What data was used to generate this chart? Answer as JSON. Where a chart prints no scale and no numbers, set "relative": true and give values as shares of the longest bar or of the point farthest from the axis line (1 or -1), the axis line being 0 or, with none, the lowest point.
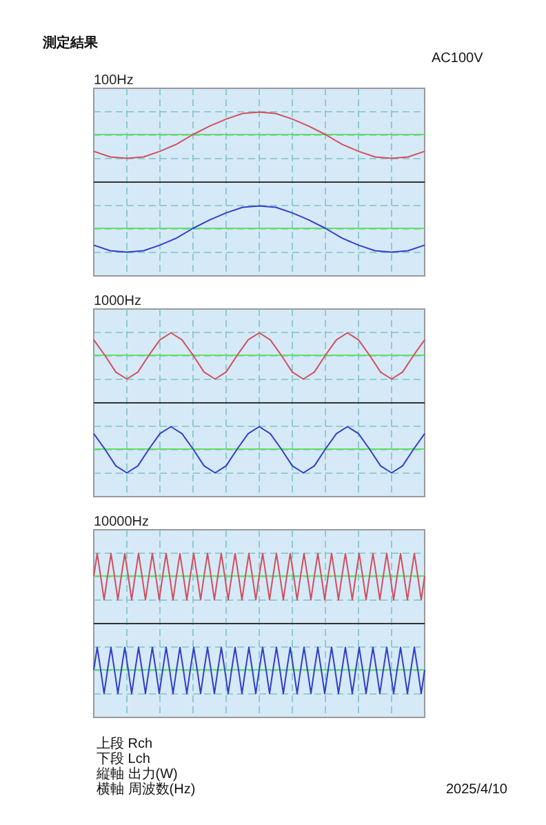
{
  "chart_data": [
    {
      "type": "line",
      "title": "100Hz",
      "relative": true,
      "grid": true,
      "annotations": [
        "測定結果",
        "AC100V"
      ],
      "categories": [
        null,
        null,
        null,
        null,
        null,
        null,
        null,
        null,
        null,
        null,
        null,
        null,
        null,
        null,
        null,
        null,
        null,
        null,
        null,
        null,
        null
      ],
      "ref_lines": [
        {
          "axis": "y",
          "value": 0.84,
          "color": "#66dd66"
        },
        {
          "axis": "y",
          "value": 0.5,
          "color": "#333333"
        },
        {
          "axis": "y",
          "value": 0.17,
          "color": "#66dd66"
        }
      ],
      "series": [
        {
          "color": "#d0505e",
          "values": [
            0.72,
            0.68,
            0.67,
            0.68,
            0.72,
            0.77,
            0.84,
            0.9,
            0.95,
            0.99,
            1.0,
            0.99,
            0.95,
            0.9,
            0.84,
            0.77,
            0.72,
            0.68,
            0.67,
            0.68,
            0.72
          ]
        },
        {
          "color": "#3040c8",
          "values": [
            0.05,
            0.01,
            0,
            0.01,
            0.05,
            0.1,
            0.17,
            0.23,
            0.28,
            0.32,
            0.33,
            0.32,
            0.28,
            0.23,
            0.17,
            0.1,
            0.05,
            0.01,
            0,
            0.01,
            0.05
          ]
        }
      ]
    },
    {
      "type": "line",
      "title": "1000Hz",
      "relative": true,
      "grid": true,
      "categories": [
        null,
        null,
        null,
        null,
        null,
        null,
        null,
        null,
        null,
        null,
        null,
        null,
        null,
        null,
        null,
        null,
        null,
        null,
        null,
        null,
        null,
        null,
        null,
        null,
        null,
        null,
        null,
        null,
        null,
        null,
        null
      ],
      "ref_lines": [
        {
          "axis": "y",
          "value": 0.84,
          "color": "#66dd66"
        },
        {
          "axis": "y",
          "value": 0.5,
          "color": "#333333"
        },
        {
          "axis": "y",
          "value": 0.17,
          "color": "#66dd66"
        }
      ],
      "series": [
        {
          "color": "#d0505e",
          "values": [
            0.95,
            0.84,
            0.72,
            0.67,
            0.72,
            0.84,
            0.95,
            1.0,
            0.95,
            0.84,
            0.72,
            0.67,
            0.72,
            0.84,
            0.95,
            1.0,
            0.95,
            0.84,
            0.72,
            0.67,
            0.72,
            0.84,
            0.95,
            1.0,
            0.95,
            0.84,
            0.72,
            0.67,
            0.72,
            0.84,
            0.95
          ]
        },
        {
          "color": "#3040c8",
          "values": [
            0.28,
            0.17,
            0.05,
            0,
            0.05,
            0.17,
            0.28,
            0.33,
            0.28,
            0.17,
            0.05,
            0,
            0.05,
            0.17,
            0.28,
            0.33,
            0.28,
            0.17,
            0.05,
            0,
            0.05,
            0.17,
            0.28,
            0.33,
            0.28,
            0.17,
            0.05,
            0,
            0.05,
            0.17,
            0.28
          ]
        }
      ]
    },
    {
      "type": "line",
      "title": "10000Hz",
      "relative": true,
      "grid": true,
      "annotations": [
        "上段 Rch",
        "下段 Lch",
        "縦軸 出力(W)",
        "横軸 周波数(Hz)",
        "2025/4/10"
      ],
      "categories": [
        null,
        null,
        null,
        null,
        null,
        null,
        null,
        null,
        null,
        null,
        null,
        null,
        null,
        null,
        null,
        null,
        null,
        null,
        null,
        null,
        null,
        null,
        null,
        null,
        null,
        null,
        null,
        null,
        null,
        null,
        null,
        null,
        null,
        null,
        null,
        null,
        null,
        null,
        null,
        null,
        null,
        null,
        null,
        null,
        null,
        null,
        null,
        null,
        null,
        null,
        null,
        null,
        null,
        null,
        null,
        null,
        null,
        null,
        null,
        null,
        null,
        null,
        null,
        null,
        null,
        null,
        null,
        null,
        null,
        null,
        null,
        null,
        null,
        null,
        null,
        null,
        null,
        null,
        null,
        null,
        null,
        null,
        null,
        null,
        null,
        null,
        null,
        null,
        null,
        null,
        null,
        null,
        null,
        null,
        null,
        null,
        null
      ],
      "ref_lines": [
        {
          "axis": "y",
          "value": 0.84,
          "color": "#66dd66"
        },
        {
          "axis": "y",
          "value": 0.5,
          "color": "#333333"
        },
        {
          "axis": "y",
          "value": 0.17,
          "color": "#66dd66"
        }
      ],
      "series": [
        {
          "color": "#d0505e",
          "values": [
            0.84,
            1,
            0.84,
            0.67,
            0.84,
            1,
            0.84,
            0.67,
            0.84,
            1,
            0.84,
            0.67,
            0.84,
            1,
            0.84,
            0.67,
            0.84,
            1,
            0.84,
            0.67,
            0.84,
            1,
            0.84,
            0.67,
            0.84,
            1,
            0.84,
            0.67,
            0.84,
            1,
            0.84,
            0.67,
            0.84,
            1,
            0.84,
            0.67,
            0.84,
            1,
            0.84,
            0.67,
            0.84,
            1,
            0.84,
            0.67,
            0.84,
            1,
            0.84,
            0.67,
            0.84,
            1,
            0.84,
            0.67,
            0.84,
            1,
            0.84,
            0.67,
            0.84,
            1,
            0.84,
            0.67,
            0.84,
            1,
            0.84,
            0.67,
            0.84,
            1,
            0.84,
            0.67,
            0.84,
            1,
            0.84,
            0.67,
            0.84,
            1,
            0.84,
            0.67,
            0.84,
            1,
            0.84,
            0.67,
            0.84,
            1,
            0.84,
            0.67,
            0.84,
            1,
            0.84,
            0.67,
            0.84,
            1,
            0.84,
            0.67,
            0.84,
            1,
            0.84,
            0.67,
            0.84
          ]
        },
        {
          "color": "#3040c8",
          "values": [
            0.17,
            0.33,
            0.17,
            0,
            0.17,
            0.33,
            0.17,
            0,
            0.17,
            0.33,
            0.17,
            0,
            0.17,
            0.33,
            0.17,
            0,
            0.17,
            0.33,
            0.17,
            0,
            0.17,
            0.33,
            0.17,
            0,
            0.17,
            0.33,
            0.17,
            0,
            0.17,
            0.33,
            0.17,
            0,
            0.17,
            0.33,
            0.17,
            0,
            0.17,
            0.33,
            0.17,
            0,
            0.17,
            0.33,
            0.17,
            0,
            0.17,
            0.33,
            0.17,
            0,
            0.17,
            0.33,
            0.17,
            0,
            0.17,
            0.33,
            0.17,
            0,
            0.17,
            0.33,
            0.17,
            0,
            0.17,
            0.33,
            0.17,
            0,
            0.17,
            0.33,
            0.17,
            0,
            0.17,
            0.33,
            0.17,
            0,
            0.17,
            0.33,
            0.17,
            0,
            0.17,
            0.33,
            0.17,
            0,
            0.17,
            0.33,
            0.17,
            0,
            0.17,
            0.33,
            0.17,
            0,
            0.17,
            0.33,
            0.17,
            0,
            0.17,
            0.33,
            0.17,
            0,
            0.17
          ]
        }
      ]
    }
  ]
}
